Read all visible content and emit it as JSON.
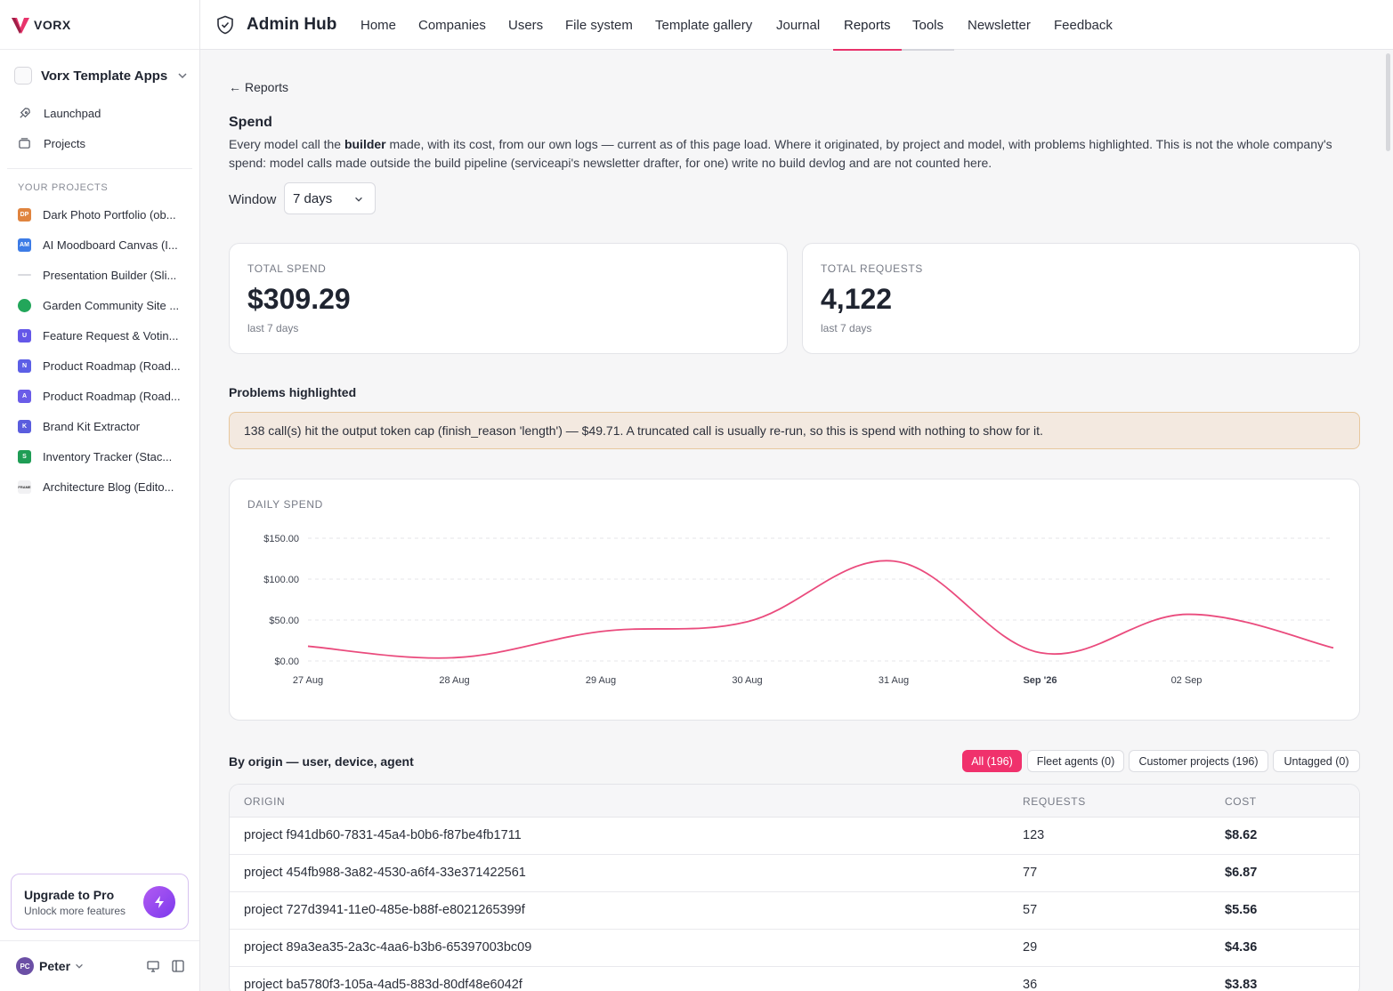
{
  "brand": {
    "name": "VORX",
    "accent": "#e8336b"
  },
  "sidebar": {
    "workspace": "Vorx Template Apps",
    "nav": [
      {
        "label": "Launchpad",
        "icon": "rocket-icon"
      },
      {
        "label": "Projects",
        "icon": "folder-icon"
      }
    ],
    "section_label": "YOUR PROJECTS",
    "projects": [
      {
        "label": "Dark Photo Portfolio (ob...",
        "badge": "DP",
        "color": "#e0843f"
      },
      {
        "label": "AI Moodboard Canvas (I...",
        "badge": "AM",
        "color": "#3d7ce6"
      },
      {
        "label": "Presentation Builder (Sli...",
        "badge": "",
        "color": "#d9dadf"
      },
      {
        "label": "Garden Community Site ...",
        "badge": "",
        "color": "#22a65a"
      },
      {
        "label": "Feature Request & Votin...",
        "badge": "U",
        "color": "#6457e8"
      },
      {
        "label": "Product Roadmap (Road...",
        "badge": "N",
        "color": "#5c5fe6"
      },
      {
        "label": "Product Roadmap (Road...",
        "badge": "A",
        "color": "#6a5ce8"
      },
      {
        "label": "Brand Kit Extractor",
        "badge": "K",
        "color": "#5a5dde"
      },
      {
        "label": "Inventory Tracker (Stac...",
        "badge": "S",
        "color": "#1f9d55"
      },
      {
        "label": "Architecture Blog (Edito...",
        "badge": "FRAME",
        "color": "#f1f1f3"
      }
    ],
    "upgrade": {
      "title": "Upgrade to Pro",
      "subtitle": "Unlock more features"
    },
    "user": {
      "name": "Peter",
      "initials": "PC"
    }
  },
  "topbar": {
    "title": "Admin Hub",
    "nav": [
      "Home",
      "Companies",
      "Users",
      "File system",
      "Template gallery",
      "Journal",
      "Reports",
      "Tools",
      "Newsletter",
      "Feedback"
    ],
    "active": "Reports"
  },
  "page": {
    "back_label": "Reports",
    "title": "Spend",
    "description_pre": "Every model call the ",
    "description_bold": "builder",
    "description_post": " made, with its cost, from our own logs — current as of this page load. Where it originated, by project and model, with problems highlighted. This is not the whole company's spend: model calls made outside the build pipeline (serviceapi's newsletter drafter, for one) write no build devlog and are not counted here.",
    "window_label": "Window",
    "window_value": "7 days"
  },
  "kpis": [
    {
      "label": "TOTAL SPEND",
      "value": "$309.29",
      "sub": "last 7 days"
    },
    {
      "label": "TOTAL REQUESTS",
      "value": "4,122",
      "sub": "last 7 days"
    }
  ],
  "problems": {
    "title": "Problems highlighted",
    "alert": "138 call(s) hit the output token cap (finish_reason 'length') — $49.71. A truncated call is usually re-run, so this is spend with nothing to show for it."
  },
  "chart_data": {
    "type": "line",
    "title": "DAILY SPEND",
    "x_tick_labels": [
      "27 Aug",
      "28 Aug",
      "29 Aug",
      "30 Aug",
      "31 Aug",
      "Sep '26",
      "02 Sep"
    ],
    "y_tick_labels": [
      "$0.00",
      "$50.00",
      "$100.00",
      "$150.00"
    ],
    "ylim": [
      0,
      150
    ],
    "grid": true,
    "x": [
      0,
      1,
      2,
      3,
      4,
      5,
      6,
      7
    ],
    "values": [
      18,
      4,
      36,
      48,
      122,
      10,
      57,
      16
    ],
    "series": [
      {
        "values": [
          18,
          4,
          36,
          48,
          122,
          10,
          57,
          16
        ]
      }
    ],
    "line_color": "#ea4b7d"
  },
  "origin": {
    "title": "By origin — user, device, agent",
    "filters": [
      "All (196)",
      "Fleet agents (0)",
      "Customer projects (196)",
      "Untagged (0)"
    ],
    "columns": [
      "ORIGIN",
      "REQUESTS",
      "COST"
    ],
    "rows": [
      [
        "project f941db60-7831-45a4-b0b6-f87be4fb1711",
        "123",
        "$8.62"
      ],
      [
        "project 454fb988-3a82-4530-a6f4-33e371422561",
        "77",
        "$6.87"
      ],
      [
        "project 727d3941-11e0-485e-b88f-e8021265399f",
        "57",
        "$5.56"
      ],
      [
        "project 89a3ea35-2a3c-4aa6-b3b6-65397003bc09",
        "29",
        "$4.36"
      ],
      [
        "project ba5780f3-105a-4ad5-883d-80df48e6042f",
        "36",
        "$3.83"
      ]
    ]
  }
}
